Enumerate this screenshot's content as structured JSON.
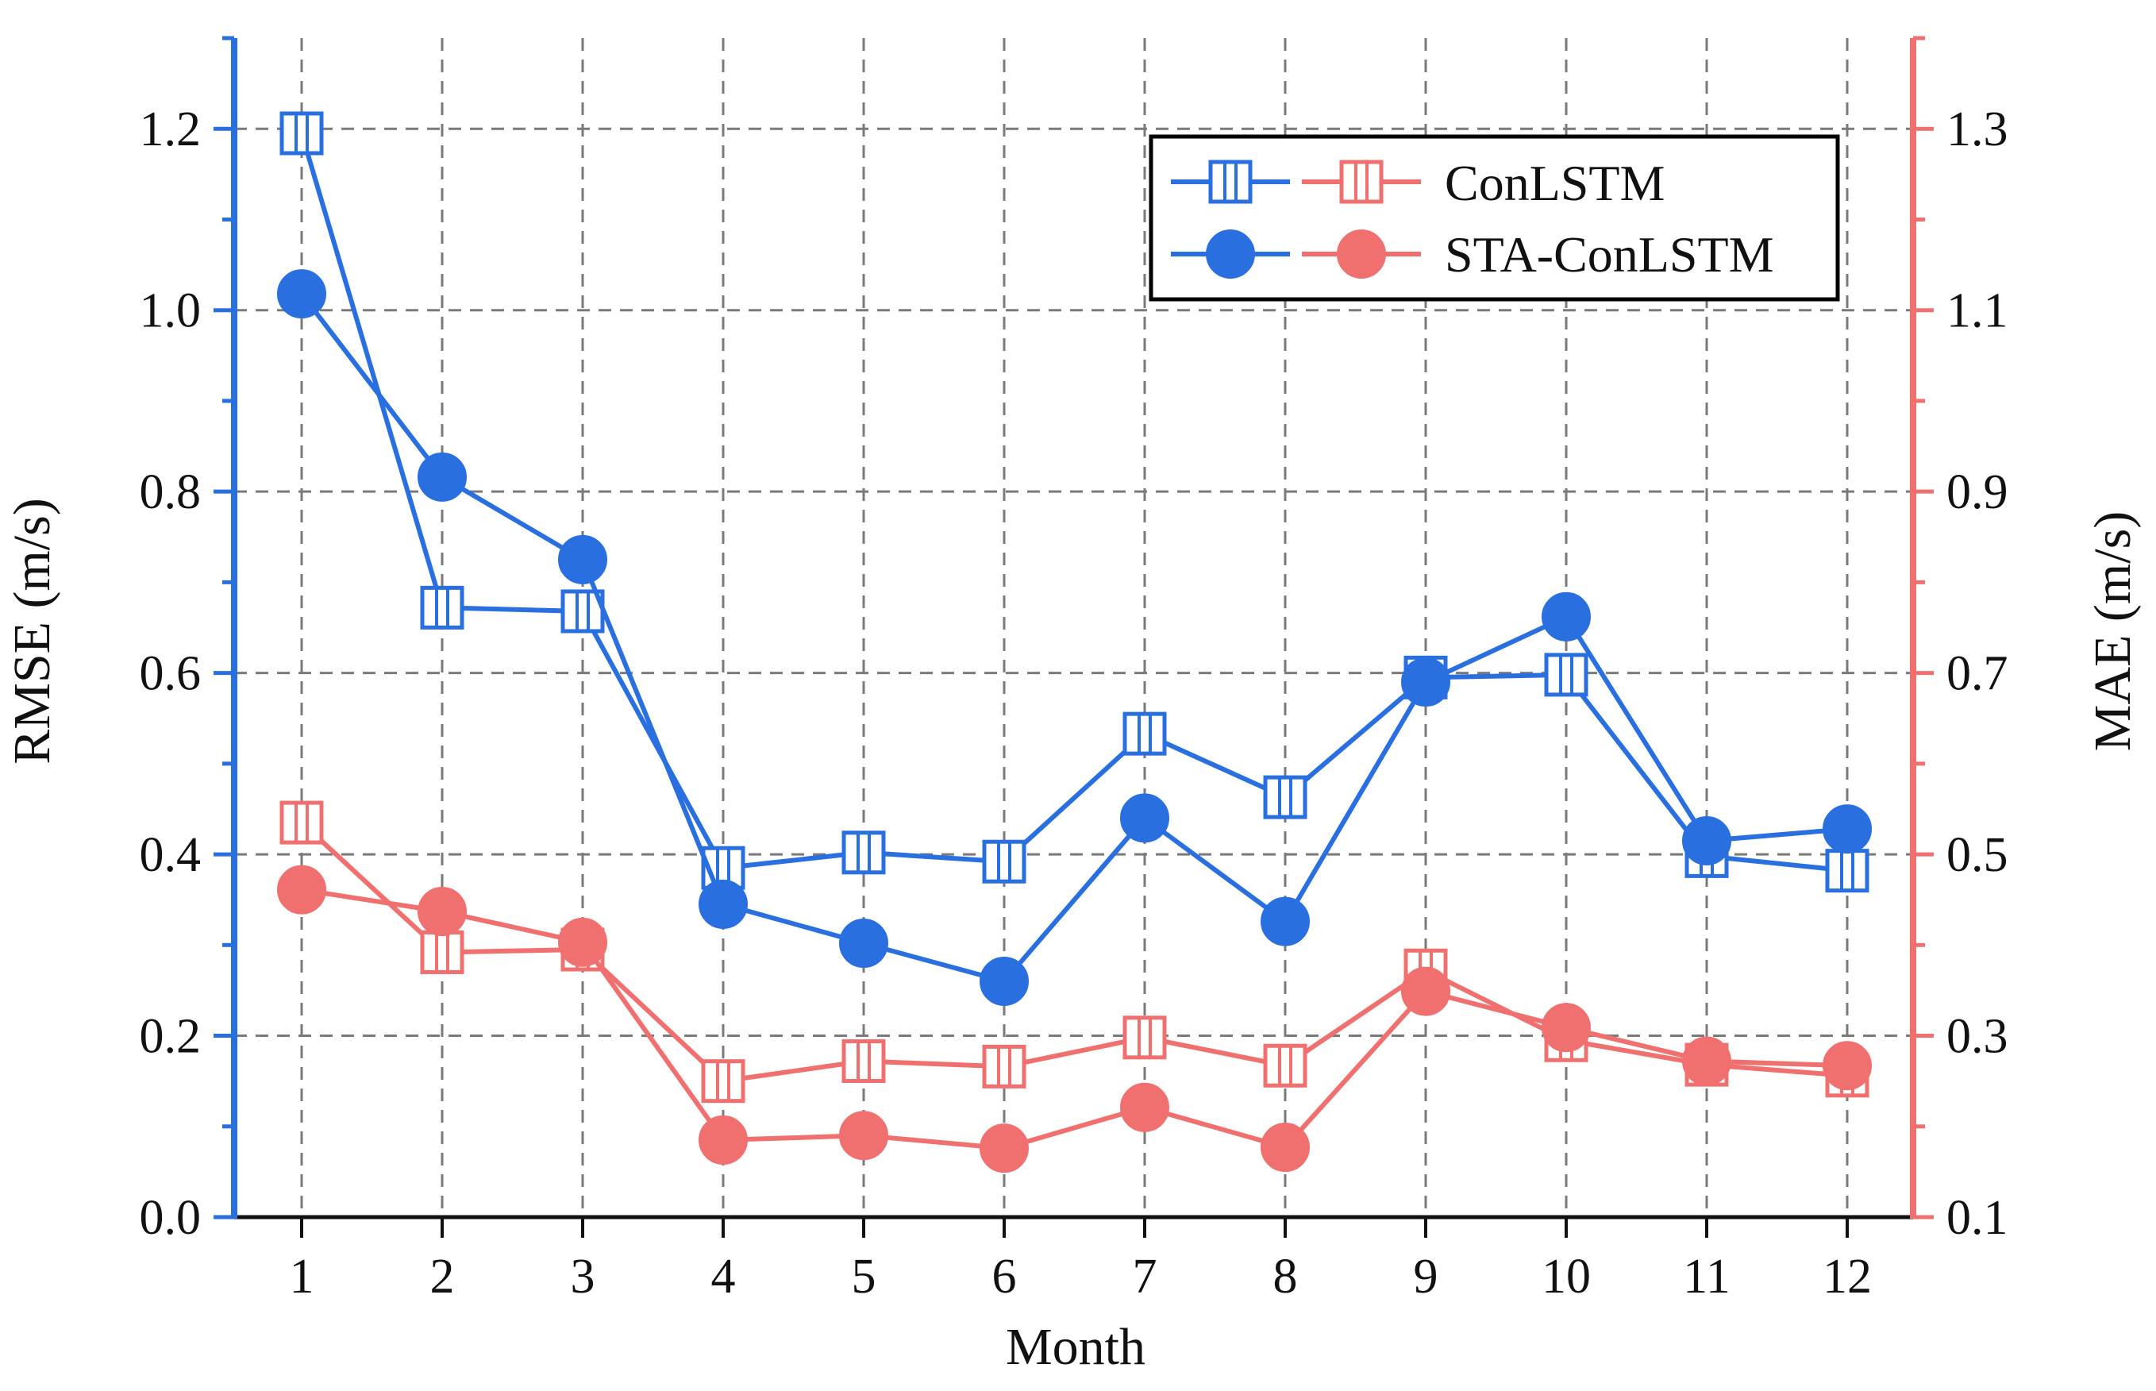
{
  "chart_data": {
    "type": "line",
    "xlabel": "Month",
    "ylabel_left": "RMSE (m/s)",
    "ylabel_right": "MAE (m/s)",
    "x": [
      1,
      2,
      3,
      4,
      5,
      6,
      7,
      8,
      9,
      10,
      11,
      12
    ],
    "x_tick_labels": [
      "1",
      "2",
      "3",
      "4",
      "5",
      "6",
      "7",
      "8",
      "9",
      "10",
      "11",
      "12"
    ],
    "ylim_left": [
      0.0,
      1.3
    ],
    "ylim_right": [
      0.1,
      1.4
    ],
    "y_left_tick_labels": [
      "0.0",
      "0.2",
      "0.4",
      "0.6",
      "0.8",
      "1.0",
      "1.2"
    ],
    "y_left_tick_values": [
      0.0,
      0.2,
      0.4,
      0.6,
      0.8,
      1.0,
      1.2
    ],
    "y_right_tick_labels": [
      "0.1",
      "0.3",
      "0.5",
      "0.7",
      "0.9",
      "1.1",
      "1.3"
    ],
    "y_right_tick_values": [
      0.1,
      0.3,
      0.5,
      0.7,
      0.9,
      1.1,
      1.3
    ],
    "grid": true,
    "legend_position": "top-right",
    "legend": [
      {
        "label": "ConLSTM",
        "marker": "square-open"
      },
      {
        "label": "STA-ConLSTM",
        "marker": "circle-filled"
      }
    ],
    "colors": {
      "rmse": "#2a6fe0",
      "mae": "#f07070"
    },
    "series": [
      {
        "name": "ConLSTM RMSE",
        "axis": "left",
        "color_key": "rmse",
        "marker": "square-open",
        "values": [
          1.195,
          0.672,
          0.668,
          0.385,
          0.402,
          0.392,
          0.533,
          0.463,
          0.595,
          0.598,
          0.398,
          0.382
        ]
      },
      {
        "name": "STA-ConLSTM RMSE",
        "axis": "left",
        "color_key": "rmse",
        "marker": "circle-filled",
        "values": [
          1.018,
          0.816,
          0.725,
          0.345,
          0.302,
          0.26,
          0.44,
          0.326,
          0.59,
          0.662,
          0.415,
          0.428
        ]
      },
      {
        "name": "ConLSTM MAE",
        "axis": "right",
        "color_key": "mae",
        "marker": "square-open",
        "values": [
          0.535,
          0.392,
          0.395,
          0.25,
          0.272,
          0.266,
          0.298,
          0.267,
          0.372,
          0.295,
          0.268,
          0.256
        ]
      },
      {
        "name": "STA-ConLSTM MAE",
        "axis": "right",
        "color_key": "mae",
        "marker": "circle-filled",
        "values": [
          0.461,
          0.437,
          0.403,
          0.185,
          0.19,
          0.176,
          0.221,
          0.177,
          0.349,
          0.309,
          0.272,
          0.267
        ]
      }
    ]
  }
}
